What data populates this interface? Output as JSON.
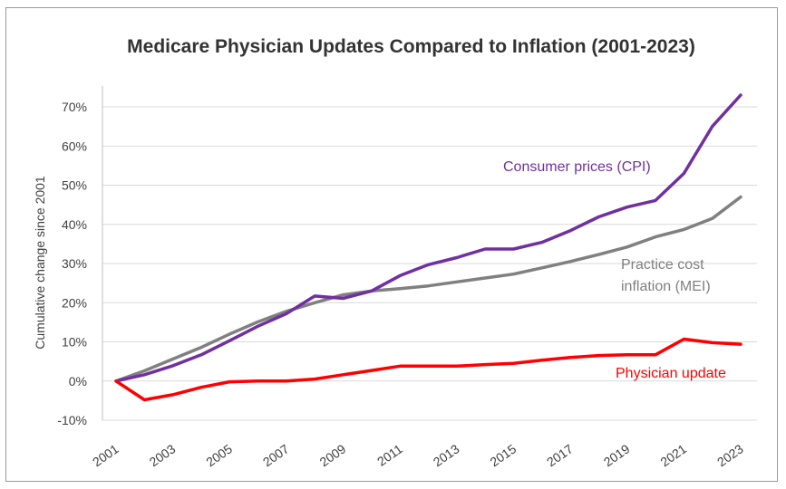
{
  "chart_data": {
    "type": "line",
    "title": "Medicare Physician Updates Compared to Inflation (2001-2023)",
    "ylabel": "Cumulative change since 2001",
    "xlabel": "",
    "ylim": [
      -10,
      70
    ],
    "y_ticks": [
      "-10%",
      "0%",
      "10%",
      "20%",
      "30%",
      "40%",
      "50%",
      "60%",
      "70%"
    ],
    "x_ticks": [
      "2001",
      "2003",
      "2005",
      "2007",
      "2009",
      "2011",
      "2013",
      "2015",
      "2017",
      "2019",
      "2021",
      "2023"
    ],
    "x": [
      2001,
      2002,
      2003,
      2004,
      2005,
      2006,
      2007,
      2008,
      2009,
      2010,
      2011,
      2012,
      2013,
      2014,
      2015,
      2016,
      2017,
      2018,
      2019,
      2020,
      2021,
      2022,
      2023
    ],
    "grid": true,
    "series": [
      {
        "name": "Consumer prices (CPI)",
        "color": "#7030a0",
        "values": [
          0,
          1.6,
          3.9,
          6.7,
          10.3,
          14.0,
          17.2,
          21.7,
          21.1,
          23.0,
          26.9,
          29.7,
          31.5,
          33.7,
          33.7,
          35.4,
          38.4,
          41.9,
          44.4,
          46.1,
          53.0,
          65.0,
          73.0
        ]
      },
      {
        "name": "Practice cost inflation (MEI)",
        "color": "#808080",
        "values": [
          0,
          2.6,
          5.6,
          8.6,
          12.0,
          15.1,
          17.8,
          20.0,
          22.0,
          23.0,
          23.6,
          24.3,
          25.3,
          26.3,
          27.3,
          28.9,
          30.5,
          32.3,
          34.2,
          36.8,
          38.7,
          41.5,
          47.0
        ]
      },
      {
        "name": "Physician update",
        "color": "#ff0000",
        "values": [
          0,
          -4.8,
          -3.5,
          -1.6,
          -0.2,
          0.0,
          0.0,
          0.5,
          1.6,
          2.7,
          3.8,
          3.8,
          3.8,
          4.2,
          4.5,
          5.3,
          6.0,
          6.5,
          6.7,
          6.7,
          10.7,
          9.8,
          9.4
        ]
      }
    ],
    "annotations": [
      {
        "series": 0,
        "lines": [
          "Consumer prices (CPI)"
        ]
      },
      {
        "series": 1,
        "lines": [
          "Practice cost",
          "inflation (MEI)"
        ]
      },
      {
        "series": 2,
        "lines": [
          "Physician update"
        ]
      }
    ]
  }
}
